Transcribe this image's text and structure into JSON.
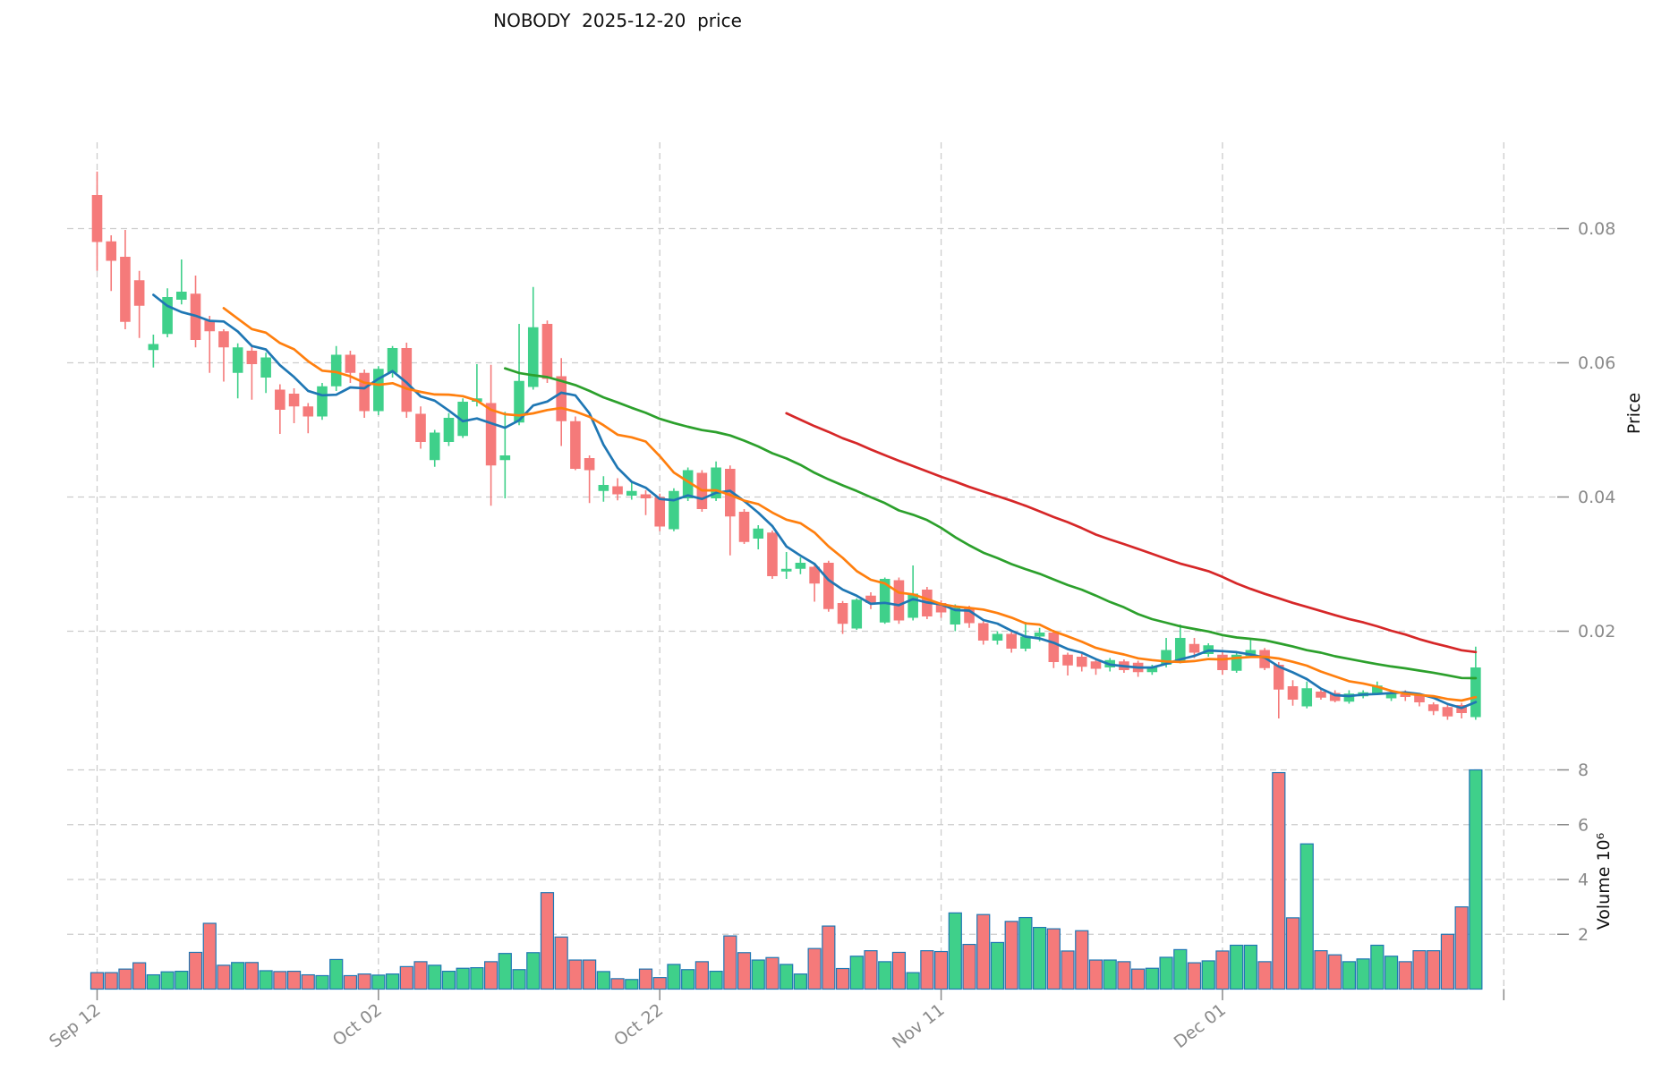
{
  "title": "NOBODY  2025-12-20  price",
  "chart_data": {
    "type": "candlestick_with_volume",
    "title": "NOBODY  2025-12-20  price",
    "ylabel_price": "Price",
    "ylabel_volume": "Volume 10⁶",
    "x_tick_labels": [
      "Sep 12",
      "Oct 02",
      "Oct 22",
      "Nov 11",
      "Dec 01"
    ],
    "x_tick_indices": [
      0,
      20,
      40,
      60,
      80
    ],
    "extra_vgrid_index": 100,
    "price_ticks": [
      0.02,
      0.04,
      0.06,
      0.08
    ],
    "volume_ticks": [
      2,
      4,
      6,
      8
    ],
    "volume_unit": 1000000,
    "grid": true,
    "legend_position": "none",
    "ma_windows": [
      5,
      10,
      30,
      50
    ],
    "ma_colors": [
      "#1f77b4",
      "#ff7f0e",
      "#2ca02c",
      "#d62728"
    ],
    "up_color": "#3fd08a",
    "down_color": "#f57a7a",
    "volume_edge_color": "#2077b4",
    "ohlc": [
      [
        0.085,
        0.0885,
        0.0737,
        0.078
      ],
      [
        0.0781,
        0.079,
        0.0707,
        0.0752
      ],
      [
        0.0758,
        0.0798,
        0.065,
        0.0661
      ],
      [
        0.0723,
        0.0737,
        0.0637,
        0.0685
      ],
      [
        0.0619,
        0.0642,
        0.0593,
        0.0628
      ],
      [
        0.0643,
        0.0711,
        0.0638,
        0.0698
      ],
      [
        0.0694,
        0.0754,
        0.0687,
        0.0706
      ],
      [
        0.0703,
        0.073,
        0.0623,
        0.0634
      ],
      [
        0.0663,
        0.067,
        0.0585,
        0.0647
      ],
      [
        0.0647,
        0.065,
        0.0572,
        0.0623
      ],
      [
        0.0585,
        0.0629,
        0.0547,
        0.0623
      ],
      [
        0.0618,
        0.0625,
        0.0545,
        0.0598
      ],
      [
        0.0578,
        0.0615,
        0.0555,
        0.0608
      ],
      [
        0.056,
        0.0568,
        0.0494,
        0.053
      ],
      [
        0.0554,
        0.0562,
        0.051,
        0.0535
      ],
      [
        0.0535,
        0.054,
        0.0495,
        0.052
      ],
      [
        0.052,
        0.057,
        0.0515,
        0.0565
      ],
      [
        0.0565,
        0.0625,
        0.0558,
        0.0612
      ],
      [
        0.0612,
        0.0618,
        0.057,
        0.0585
      ],
      [
        0.0585,
        0.059,
        0.0518,
        0.0528
      ],
      [
        0.0528,
        0.0595,
        0.0522,
        0.0591
      ],
      [
        0.0585,
        0.0625,
        0.0578,
        0.0622
      ],
      [
        0.0622,
        0.063,
        0.0518,
        0.0527
      ],
      [
        0.0524,
        0.0535,
        0.0472,
        0.0482
      ],
      [
        0.0455,
        0.05,
        0.0445,
        0.0496
      ],
      [
        0.0482,
        0.0525,
        0.0476,
        0.0518
      ],
      [
        0.0491,
        0.0547,
        0.0488,
        0.0542
      ],
      [
        0.0542,
        0.0598,
        0.0535,
        0.0547
      ],
      [
        0.054,
        0.0597,
        0.0387,
        0.0447
      ],
      [
        0.0455,
        0.0527,
        0.0398,
        0.0462
      ],
      [
        0.0511,
        0.0658,
        0.0507,
        0.0573
      ],
      [
        0.0564,
        0.0713,
        0.056,
        0.0653
      ],
      [
        0.0658,
        0.0663,
        0.057,
        0.0576
      ],
      [
        0.058,
        0.0607,
        0.0476,
        0.0513
      ],
      [
        0.0513,
        0.052,
        0.044,
        0.0442
      ],
      [
        0.0458,
        0.0462,
        0.0391,
        0.044
      ],
      [
        0.0409,
        0.0431,
        0.0393,
        0.0418
      ],
      [
        0.0416,
        0.0428,
        0.0395,
        0.0404
      ],
      [
        0.0402,
        0.0422,
        0.0396,
        0.0409
      ],
      [
        0.0404,
        0.041,
        0.0373,
        0.0398
      ],
      [
        0.04,
        0.0405,
        0.0349,
        0.0356
      ],
      [
        0.0352,
        0.0413,
        0.0349,
        0.0409
      ],
      [
        0.0398,
        0.0444,
        0.0394,
        0.044
      ],
      [
        0.0436,
        0.044,
        0.0378,
        0.0382
      ],
      [
        0.0398,
        0.0453,
        0.0394,
        0.0444
      ],
      [
        0.0442,
        0.0447,
        0.0313,
        0.0371
      ],
      [
        0.0378,
        0.0382,
        0.033,
        0.0333
      ],
      [
        0.0338,
        0.0358,
        0.0322,
        0.0353
      ],
      [
        0.0347,
        0.035,
        0.0278,
        0.0282
      ],
      [
        0.0289,
        0.0318,
        0.0278,
        0.0293
      ],
      [
        0.0293,
        0.031,
        0.0285,
        0.0302
      ],
      [
        0.0296,
        0.03,
        0.0244,
        0.0271
      ],
      [
        0.0302,
        0.0305,
        0.0229,
        0.0233
      ],
      [
        0.0242,
        0.0245,
        0.0196,
        0.0211
      ],
      [
        0.0204,
        0.0249,
        0.0202,
        0.0247
      ],
      [
        0.0253,
        0.0258,
        0.0233,
        0.0242
      ],
      [
        0.0213,
        0.028,
        0.0211,
        0.0278
      ],
      [
        0.0276,
        0.028,
        0.0211,
        0.0216
      ],
      [
        0.022,
        0.0298,
        0.0216,
        0.0256
      ],
      [
        0.0262,
        0.0266,
        0.0218,
        0.0222
      ],
      [
        0.0242,
        0.0246,
        0.022,
        0.0228
      ],
      [
        0.021,
        0.024,
        0.02,
        0.0235
      ],
      [
        0.0235,
        0.0238,
        0.0205,
        0.0212
      ],
      [
        0.0212,
        0.0215,
        0.018,
        0.0186
      ],
      [
        0.0186,
        0.02,
        0.018,
        0.0196
      ],
      [
        0.0196,
        0.0199,
        0.0168,
        0.0174
      ],
      [
        0.0174,
        0.0214,
        0.017,
        0.0192
      ],
      [
        0.0192,
        0.0205,
        0.0185,
        0.0198
      ],
      [
        0.0198,
        0.0202,
        0.0145,
        0.0154
      ],
      [
        0.0165,
        0.0168,
        0.0134,
        0.0149
      ],
      [
        0.0162,
        0.0166,
        0.014,
        0.0147
      ],
      [
        0.0155,
        0.0158,
        0.0135,
        0.0144
      ],
      [
        0.0146,
        0.016,
        0.014,
        0.0157
      ],
      [
        0.0155,
        0.0158,
        0.0138,
        0.0142
      ],
      [
        0.0153,
        0.0156,
        0.0132,
        0.0139
      ],
      [
        0.0139,
        0.015,
        0.0135,
        0.0147
      ],
      [
        0.015,
        0.019,
        0.0146,
        0.0172
      ],
      [
        0.0156,
        0.021,
        0.0152,
        0.019
      ],
      [
        0.0181,
        0.019,
        0.016,
        0.0168
      ],
      [
        0.0166,
        0.0182,
        0.0162,
        0.0179
      ],
      [
        0.0165,
        0.017,
        0.0135,
        0.0142
      ],
      [
        0.0141,
        0.0168,
        0.0138,
        0.0165
      ],
      [
        0.0163,
        0.0187,
        0.016,
        0.0172
      ],
      [
        0.0172,
        0.0175,
        0.0142,
        0.0145
      ],
      [
        0.015,
        0.0154,
        0.007,
        0.0113
      ],
      [
        0.0118,
        0.0127,
        0.0089,
        0.0098
      ],
      [
        0.0088,
        0.0125,
        0.0085,
        0.0115
      ],
      [
        0.011,
        0.0115,
        0.0098,
        0.0101
      ],
      [
        0.0108,
        0.0112,
        0.0094,
        0.0096
      ],
      [
        0.0095,
        0.0112,
        0.0092,
        0.0107
      ],
      [
        0.0103,
        0.0112,
        0.01,
        0.0109
      ],
      [
        0.0108,
        0.0125,
        0.0105,
        0.0119
      ],
      [
        0.01,
        0.0112,
        0.0096,
        0.0108
      ],
      [
        0.0106,
        0.0112,
        0.0096,
        0.0102
      ],
      [
        0.0105,
        0.0108,
        0.0088,
        0.0094
      ],
      [
        0.0091,
        0.0094,
        0.0075,
        0.0081
      ],
      [
        0.0087,
        0.009,
        0.0068,
        0.0073
      ],
      [
        0.009,
        0.0093,
        0.007,
        0.0078
      ],
      [
        0.0072,
        0.0177,
        0.0068,
        0.0146
      ]
    ],
    "volume_millions": [
      0.6,
      0.6,
      0.73,
      0.96,
      0.52,
      0.63,
      0.65,
      1.34,
      2.4,
      0.87,
      0.97,
      0.97,
      0.67,
      0.64,
      0.65,
      0.52,
      0.49,
      1.08,
      0.49,
      0.55,
      0.51,
      0.55,
      0.82,
      1.0,
      0.87,
      0.65,
      0.76,
      0.78,
      1.0,
      1.3,
      0.71,
      1.33,
      3.52,
      1.9,
      1.06,
      1.06,
      0.64,
      0.38,
      0.35,
      0.73,
      0.42,
      0.9,
      0.71,
      1.0,
      0.65,
      1.94,
      1.33,
      1.06,
      1.15,
      0.9,
      0.55,
      1.48,
      2.3,
      0.75,
      1.2,
      1.4,
      1.0,
      1.34,
      0.6,
      1.4,
      1.37,
      2.78,
      1.63,
      2.72,
      1.7,
      2.47,
      2.61,
      2.25,
      2.2,
      1.39,
      2.13,
      1.06,
      1.06,
      1.0,
      0.73,
      0.76,
      1.16,
      1.44,
      0.96,
      1.03,
      1.39,
      1.6,
      1.6,
      1.0,
      7.9,
      2.6,
      5.3,
      1.4,
      1.25,
      1.0,
      1.1,
      1.6,
      1.2,
      1.0,
      1.4,
      1.4,
      2.0,
      3.0,
      8.0
    ]
  }
}
